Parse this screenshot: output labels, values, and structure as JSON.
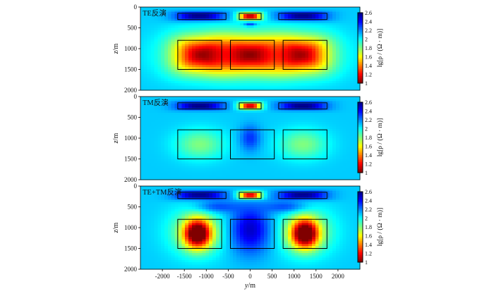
{
  "chart_data": {
    "type": "heatmap",
    "colorscale": "jet",
    "clim": [
      1,
      2.6
    ],
    "background_value": 2.08,
    "x_axis": {
      "label_italic": "y",
      "label_unit": "/m",
      "range": [
        -2500,
        2500
      ],
      "ticks": [
        "-2000",
        "-1500",
        "-1000",
        "-500",
        "0",
        "500",
        "1000",
        "1500",
        "2000"
      ]
    },
    "y_axis": {
      "label_italic": "z",
      "label_unit": "/m",
      "range": [
        0,
        2000
      ],
      "ticks": [
        "0",
        "500",
        "1000",
        "1500",
        "2000"
      ]
    },
    "colorbar": {
      "ticks": [
        "2.6",
        "2.4",
        "2.2",
        "2",
        "1.8",
        "1.6",
        "1.4",
        "1.2",
        "1"
      ],
      "label": "lg[ρ / (Ω · m)]"
    },
    "model_blocks": [
      {
        "x": [
          -1650,
          -550
        ],
        "z": [
          150,
          300
        ]
      },
      {
        "x": [
          -250,
          250
        ],
        "z": [
          150,
          300
        ]
      },
      {
        "x": [
          650,
          1750
        ],
        "z": [
          150,
          300
        ]
      },
      {
        "x": [
          -1650,
          -650
        ],
        "z": [
          800,
          1500
        ]
      },
      {
        "x": [
          -450,
          550
        ],
        "z": [
          800,
          1500
        ]
      },
      {
        "x": [
          750,
          1750
        ],
        "z": [
          800,
          1500
        ]
      }
    ],
    "panels": [
      {
        "title": "TE反演",
        "anomalies": [
          {
            "cx": -1150,
            "cz": 220,
            "sx": 650,
            "sz": 120,
            "amp": 0.55,
            "exp": 4
          },
          {
            "cx": 1200,
            "cz": 220,
            "sx": 650,
            "sz": 120,
            "amp": 0.55,
            "exp": 4
          },
          {
            "cx": 0,
            "cz": 220,
            "sx": 300,
            "sz": 100,
            "amp": -1.05,
            "exp": 4
          },
          {
            "cx": 0,
            "cz": 420,
            "sx": 180,
            "sz": 60,
            "amp": 0.3,
            "exp": 2
          },
          {
            "cx": -1150,
            "cz": 1150,
            "sx": 750,
            "sz": 520,
            "amp": -0.8,
            "exp": 3
          },
          {
            "cx": 1200,
            "cz": 1150,
            "sx": 750,
            "sz": 520,
            "amp": -0.8,
            "exp": 3
          },
          {
            "cx": 0,
            "cz": 1150,
            "sx": 750,
            "sz": 500,
            "amp": -0.68,
            "exp": 3
          },
          {
            "cx": 0,
            "cz": 1150,
            "sx": 2100,
            "sz": 700,
            "amp": -0.35,
            "exp": 2
          }
        ]
      },
      {
        "title": "TM反演",
        "anomalies": [
          {
            "cx": -1150,
            "cz": 225,
            "sx": 620,
            "sz": 110,
            "amp": 0.55,
            "exp": 4
          },
          {
            "cx": 1200,
            "cz": 225,
            "sx": 620,
            "sz": 110,
            "amp": 0.55,
            "exp": 4
          },
          {
            "cx": 0,
            "cz": 225,
            "sx": 290,
            "sz": 95,
            "amp": -1.05,
            "exp": 4
          },
          {
            "cx": -1150,
            "cz": 1150,
            "sx": 700,
            "sz": 450,
            "amp": -0.28,
            "exp": 2
          },
          {
            "cx": 1200,
            "cz": 1150,
            "sx": 700,
            "sz": 450,
            "amp": -0.28,
            "exp": 2
          },
          {
            "cx": 0,
            "cz": 1000,
            "sx": 300,
            "sz": 380,
            "amp": 0.25,
            "exp": 2
          }
        ]
      },
      {
        "title": "TE+TM反演",
        "anomalies": [
          {
            "cx": -1150,
            "cz": 220,
            "sx": 650,
            "sz": 120,
            "amp": 0.55,
            "exp": 4
          },
          {
            "cx": 1200,
            "cz": 220,
            "sx": 650,
            "sz": 120,
            "amp": 0.55,
            "exp": 4
          },
          {
            "cx": 0,
            "cz": 220,
            "sx": 300,
            "sz": 100,
            "amp": -1.05,
            "exp": 4
          },
          {
            "cx": -1200,
            "cz": 1150,
            "sx": 380,
            "sz": 420,
            "amp": -1.05,
            "exp": 2
          },
          {
            "cx": 1250,
            "cz": 1150,
            "sx": 380,
            "sz": 420,
            "amp": -1.05,
            "exp": 2
          },
          {
            "cx": -1200,
            "cz": 1100,
            "sx": 800,
            "sz": 700,
            "amp": -0.35,
            "exp": 2
          },
          {
            "cx": 1250,
            "cz": 1100,
            "sx": 800,
            "sz": 700,
            "amp": -0.35,
            "exp": 2
          },
          {
            "cx": 0,
            "cz": 1050,
            "sx": 600,
            "sz": 700,
            "amp": 0.42,
            "exp": 2
          },
          {
            "cx": -800,
            "cz": 500,
            "sx": 600,
            "sz": 180,
            "amp": 0.25,
            "exp": 2
          },
          {
            "cx": 850,
            "cz": 500,
            "sx": 600,
            "sz": 180,
            "amp": 0.25,
            "exp": 2
          }
        ]
      }
    ]
  }
}
